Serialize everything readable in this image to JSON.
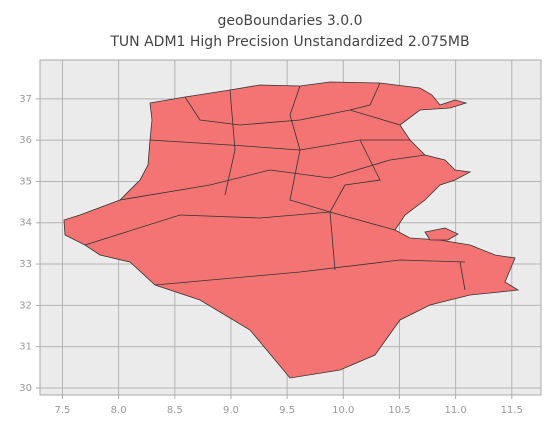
{
  "chart_data": {
    "type": "map",
    "title": "geoBoundaries 3.0.0",
    "subtitle": "TUN ADM1 High Precision Unstandardized 2.075MB",
    "xlim": [
      7.3,
      11.76
    ],
    "ylim": [
      29.83,
      37.94
    ],
    "xticks": [
      7.5,
      {
        "value": 8,
        "label": "8.0"
      },
      8.5,
      {
        "value": 9,
        "label": "9.0"
      },
      9.5,
      {
        "value": 10,
        "label": "10.0"
      },
      10.5,
      {
        "value": 11,
        "label": "11.0"
      },
      11.5
    ],
    "yticks": [
      30,
      31,
      32,
      33,
      34,
      35,
      36,
      37
    ],
    "grid": true,
    "color": "#f47373"
  }
}
